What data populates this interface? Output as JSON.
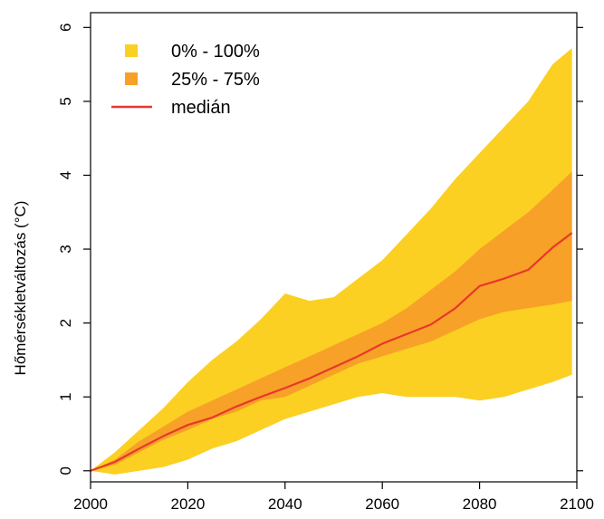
{
  "chart_data": {
    "type": "area",
    "title": "",
    "xlabel": "",
    "ylabel": "Hőmérsékletváltozás (°C)",
    "xlim": [
      2000,
      2100
    ],
    "ylim": [
      -0.15,
      6.2
    ],
    "xticks": [
      2000,
      2020,
      2040,
      2060,
      2080,
      2100
    ],
    "yticks": [
      0,
      1,
      2,
      3,
      4,
      5,
      6
    ],
    "grid": false,
    "legend_position": "top-left",
    "x": [
      2000,
      2005,
      2010,
      2015,
      2020,
      2025,
      2030,
      2035,
      2040,
      2045,
      2050,
      2055,
      2060,
      2065,
      2070,
      2075,
      2080,
      2085,
      2090,
      2095,
      2099
    ],
    "series": [
      {
        "name": "0% - 100%",
        "kind": "band",
        "color": "#FBD022",
        "lower": [
          0.0,
          -0.05,
          0.0,
          0.05,
          0.15,
          0.3,
          0.4,
          0.55,
          0.7,
          0.8,
          0.9,
          1.0,
          1.05,
          1.0,
          1.0,
          1.0,
          0.95,
          1.0,
          1.1,
          1.2,
          1.3
        ],
        "upper": [
          0.0,
          0.25,
          0.55,
          0.85,
          1.2,
          1.5,
          1.75,
          2.05,
          2.4,
          2.3,
          2.35,
          2.6,
          2.85,
          3.2,
          3.55,
          3.95,
          4.3,
          4.65,
          5.0,
          5.5,
          5.72
        ]
      },
      {
        "name": "25% - 75%",
        "kind": "band",
        "color": "#F7A128",
        "lower": [
          0.0,
          0.08,
          0.25,
          0.42,
          0.55,
          0.7,
          0.8,
          0.95,
          1.0,
          1.15,
          1.3,
          1.45,
          1.55,
          1.65,
          1.75,
          1.9,
          2.05,
          2.15,
          2.2,
          2.25,
          2.3
        ],
        "upper": [
          0.0,
          0.15,
          0.4,
          0.6,
          0.8,
          0.95,
          1.1,
          1.25,
          1.4,
          1.55,
          1.7,
          1.85,
          2.0,
          2.2,
          2.45,
          2.7,
          3.0,
          3.25,
          3.5,
          3.8,
          4.05
        ]
      },
      {
        "name": "medián",
        "kind": "line",
        "color": "#E8382A",
        "values": [
          0.0,
          0.12,
          0.3,
          0.47,
          0.62,
          0.72,
          0.87,
          1.0,
          1.12,
          1.25,
          1.4,
          1.55,
          1.72,
          1.85,
          1.98,
          2.2,
          2.5,
          2.6,
          2.72,
          3.02,
          3.22
        ]
      }
    ]
  }
}
